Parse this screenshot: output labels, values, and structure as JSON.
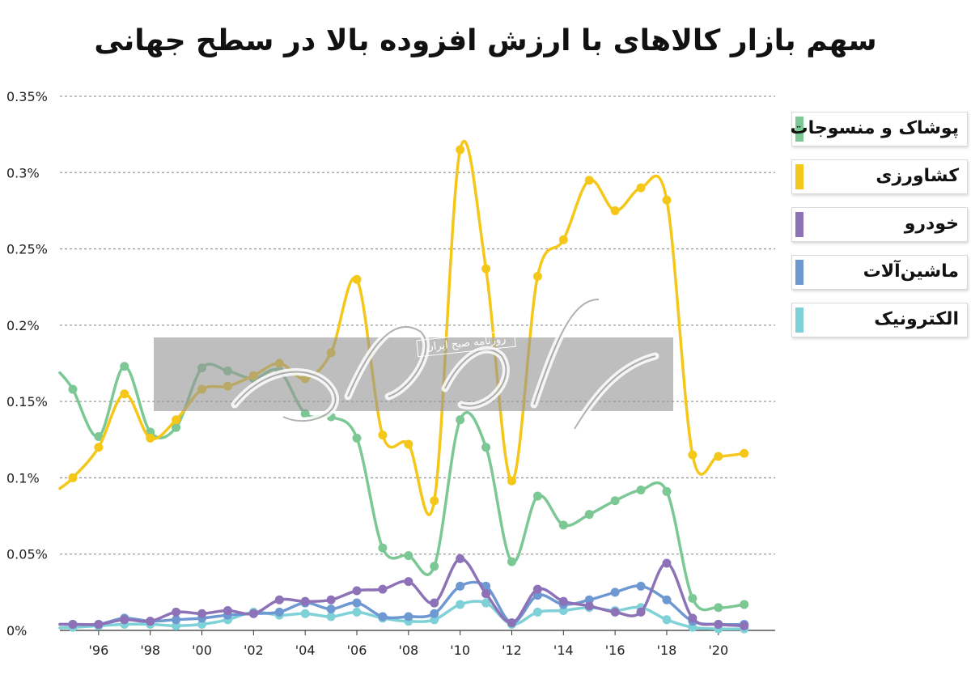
{
  "chart_data": {
    "type": "line",
    "title": "سهم بازار کالاهای با ارزش افزوده بالا در سطح جهانی",
    "xlabel": "",
    "ylabel": "",
    "x": [
      1995,
      1996,
      1997,
      1998,
      1999,
      2000,
      2001,
      2002,
      2003,
      2004,
      2005,
      2006,
      2007,
      2008,
      2009,
      2010,
      2011,
      2012,
      2013,
      2014,
      2015,
      2016,
      2017,
      2018,
      2019,
      2020,
      2021
    ],
    "xticks": [
      1996,
      1998,
      2000,
      2002,
      2004,
      2006,
      2008,
      2010,
      2012,
      2014,
      2016,
      2018,
      2020
    ],
    "xtick_labels": [
      "'96",
      "'98",
      "'00",
      "'02",
      "'04",
      "'06",
      "'08",
      "'10",
      "'12",
      "'14",
      "'16",
      "'18",
      "'20"
    ],
    "xlim": [
      1994.5,
      2022.2
    ],
    "ylim": [
      0,
      0.35
    ],
    "yticks": [
      0,
      0.05,
      0.1,
      0.15,
      0.2,
      0.25,
      0.3,
      0.35
    ],
    "ytick_labels": [
      "0%",
      "0.05%",
      "0.1%",
      "0.15%",
      "0.2%",
      "0.25%",
      "0.3%",
      "0.35%"
    ],
    "grid": true,
    "legend_position": "right",
    "series": [
      {
        "name": "پوشاک و منسوجات",
        "color": "#7cc895",
        "values": [
          0.158,
          0.127,
          0.173,
          0.13,
          0.133,
          0.172,
          0.17,
          0.165,
          0.17,
          0.142,
          0.14,
          0.126,
          0.054,
          0.049,
          0.042,
          0.138,
          0.12,
          0.045,
          0.088,
          0.069,
          0.076,
          0.085,
          0.092,
          0.091,
          0.021,
          0.015,
          0.017
        ]
      },
      {
        "name": "کشاورزی",
        "color": "#f5c718",
        "values": [
          0.1,
          0.12,
          0.155,
          0.126,
          0.138,
          0.158,
          0.16,
          0.167,
          0.175,
          0.165,
          0.182,
          0.23,
          0.128,
          0.122,
          0.085,
          0.315,
          0.237,
          0.098,
          0.232,
          0.256,
          0.295,
          0.275,
          0.29,
          0.282,
          0.115,
          0.114,
          0.116
        ]
      },
      {
        "name": "خودرو",
        "color": "#8d72b8",
        "values": [
          0.004,
          0.004,
          0.007,
          0.006,
          0.012,
          0.011,
          0.013,
          0.011,
          0.02,
          0.019,
          0.02,
          0.026,
          0.027,
          0.032,
          0.018,
          0.047,
          0.024,
          0.005,
          0.027,
          0.019,
          0.016,
          0.012,
          0.012,
          0.044,
          0.008,
          0.004,
          0.003
        ]
      },
      {
        "name": "ماشین‌آلات",
        "color": "#6d98d2",
        "values": [
          0.004,
          0.004,
          0.008,
          0.006,
          0.007,
          0.008,
          0.01,
          0.011,
          0.012,
          0.018,
          0.014,
          0.018,
          0.009,
          0.009,
          0.011,
          0.029,
          0.029,
          0.005,
          0.023,
          0.017,
          0.02,
          0.025,
          0.029,
          0.02,
          0.006,
          0.004,
          0.004
        ]
      },
      {
        "name": "الکترونیک",
        "color": "#7fd1d8",
        "values": [
          0.002,
          0.003,
          0.004,
          0.004,
          0.003,
          0.004,
          0.007,
          0.012,
          0.01,
          0.011,
          0.009,
          0.012,
          0.008,
          0.006,
          0.007,
          0.017,
          0.018,
          0.004,
          0.012,
          0.013,
          0.015,
          0.013,
          0.015,
          0.007,
          0.002,
          0.001,
          0.001
        ]
      }
    ]
  },
  "watermark": {
    "label": "روزنامه صبح ایران"
  }
}
